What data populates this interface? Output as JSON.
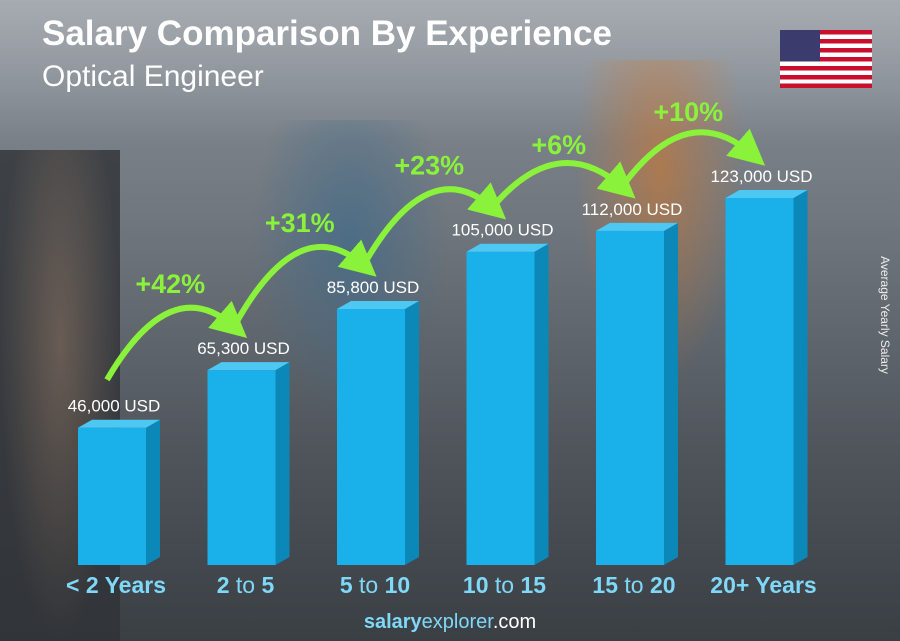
{
  "chart_data": {
    "type": "bar",
    "title": "Salary Comparison By Experience",
    "subtitle": "Optical Engineer",
    "ylabel": "Average Yearly Salary",
    "categories": [
      [
        "<",
        "2 Years",
        ""
      ],
      [
        "2",
        "to",
        "5"
      ],
      [
        "5",
        "to",
        "10"
      ],
      [
        "10",
        "to",
        "15"
      ],
      [
        "15",
        "to",
        "20"
      ],
      [
        "20+ Years",
        "",
        ""
      ]
    ],
    "values": [
      46000,
      65300,
      85800,
      105000,
      112000,
      123000
    ],
    "value_labels": [
      "46,000 USD",
      "65,300 USD",
      "85,800 USD",
      "105,000 USD",
      "112,000 USD",
      "123,000 USD"
    ],
    "changes": [
      "+42%",
      "+31%",
      "+23%",
      "+6%",
      "+10%"
    ],
    "ylim": [
      0,
      123000
    ],
    "bar_color": "#1ab0ea",
    "change_color": "#8af23a"
  },
  "footer": {
    "bold": "salary",
    "normal": "explorer",
    "domain": ".com"
  },
  "flag": "us-flag-icon"
}
